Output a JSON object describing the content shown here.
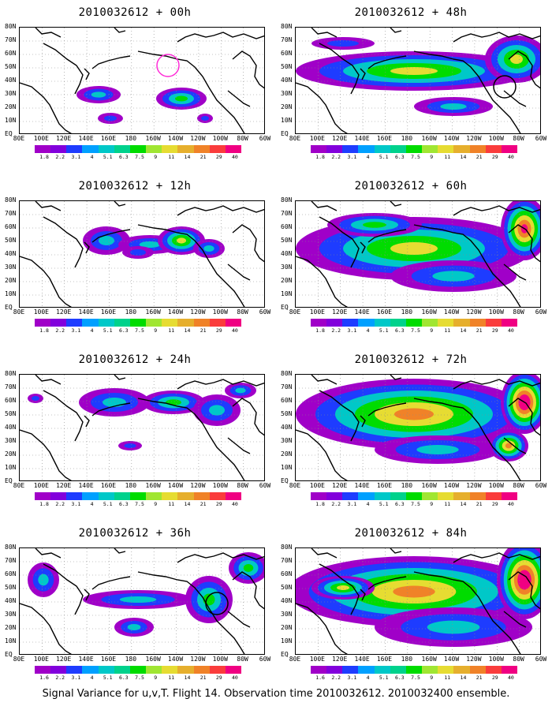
{
  "panels": [
    {
      "title": "2010032612 + 00h",
      "blobs": [
        [
          100,
          85,
          28,
          11,
          3
        ],
        [
          115,
          115,
          16,
          7,
          2
        ],
        [
          205,
          90,
          32,
          14,
          4
        ],
        [
          235,
          115,
          10,
          6,
          2
        ]
      ],
      "circle": {
        "color": "#ff2bd6",
        "x": 188,
        "y": 48
      }
    },
    {
      "title": "2010032612 + 12h",
      "blobs": [
        [
          110,
          50,
          30,
          18,
          3
        ],
        [
          165,
          55,
          40,
          12,
          3
        ],
        [
          205,
          50,
          30,
          18,
          5
        ],
        [
          240,
          60,
          20,
          12,
          3
        ],
        [
          150,
          65,
          20,
          8,
          2
        ]
      ],
      "circle": null
    },
    {
      "title": "2010032612 + 24h",
      "blobs": [
        [
          120,
          35,
          45,
          18,
          3
        ],
        [
          195,
          35,
          40,
          15,
          4
        ],
        [
          250,
          45,
          30,
          20,
          3
        ],
        [
          140,
          90,
          15,
          6,
          2
        ],
        [
          20,
          30,
          10,
          6,
          2
        ],
        [
          280,
          20,
          20,
          10,
          3
        ]
      ],
      "circle": null
    },
    {
      "title": "2010032612 + 36h",
      "blobs": [
        [
          30,
          40,
          20,
          22,
          3
        ],
        [
          150,
          65,
          70,
          12,
          3
        ],
        [
          240,
          65,
          30,
          30,
          4
        ],
        [
          145,
          100,
          25,
          12,
          3
        ],
        [
          290,
          25,
          25,
          20,
          4
        ]
      ],
      "circle": {
        "color": "#000000",
        "x": 250,
        "y": 70
      }
    },
    {
      "title": "2010032612 + 48h",
      "blobs": [
        [
          150,
          55,
          150,
          25,
          5
        ],
        [
          200,
          100,
          50,
          12,
          3
        ],
        [
          280,
          40,
          40,
          30,
          5
        ],
        [
          60,
          20,
          40,
          8,
          2
        ]
      ],
      "circle": {
        "color": "#000000",
        "x": 265,
        "y": 75
      }
    },
    {
      "title": "2010032612 + 60h",
      "blobs": [
        [
          150,
          60,
          150,
          40,
          5
        ],
        [
          200,
          95,
          80,
          20,
          3
        ],
        [
          290,
          35,
          30,
          40,
          7
        ],
        [
          100,
          30,
          60,
          15,
          4
        ]
      ],
      "circle": null
    },
    {
      "title": "2010032612 + 72h",
      "blobs": [
        [
          150,
          50,
          150,
          45,
          6
        ],
        [
          180,
          95,
          80,
          18,
          3
        ],
        [
          290,
          35,
          30,
          40,
          8
        ],
        [
          270,
          90,
          25,
          20,
          6
        ]
      ],
      "circle": null
    },
    {
      "title": "2010032612 + 84h",
      "blobs": [
        [
          150,
          55,
          160,
          45,
          6
        ],
        [
          200,
          100,
          100,
          25,
          3
        ],
        [
          290,
          40,
          35,
          50,
          8
        ],
        [
          60,
          50,
          40,
          15,
          5
        ]
      ],
      "circle": null
    }
  ],
  "lat_labels": [
    "80N",
    "70N",
    "60N",
    "50N",
    "40N",
    "30N",
    "20N",
    "10N",
    "EQ"
  ],
  "lon_labels": [
    "80E",
    "100E",
    "120E",
    "140E",
    "160E",
    "180",
    "160W",
    "140W",
    "120W",
    "100W",
    "80W",
    "60W"
  ],
  "colorbar": {
    "ticks": [
      "1.8",
      "2.2",
      "3.1",
      "4",
      "5.1",
      "6.3",
      "7.5",
      "9",
      "11",
      "14",
      "21",
      "29",
      "40"
    ],
    "ticks_panel_36h": [
      "1.6",
      "2.2",
      "3.1",
      "4",
      "5.1",
      "6.3",
      "7.5",
      "9",
      "11",
      "14",
      "21",
      "29",
      "40"
    ],
    "ticks_panel_84h": [
      "1.6",
      "2.2",
      "3.1",
      "4",
      "5.1",
      "6.3",
      "7.5",
      "9",
      "11",
      "14",
      "21",
      "29",
      "40"
    ],
    "colors": [
      "#a000c8",
      "#8200dc",
      "#1e3cff",
      "#00a0ff",
      "#00c8c8",
      "#00d28c",
      "#00dc00",
      "#a0e632",
      "#e6dc32",
      "#e6af2d",
      "#f08228",
      "#fa3c3c",
      "#f00082"
    ]
  },
  "footer": "Signal Variance for u,v,T. Flight 14. Observation time 2010032612. 2010032400 ensemble."
}
